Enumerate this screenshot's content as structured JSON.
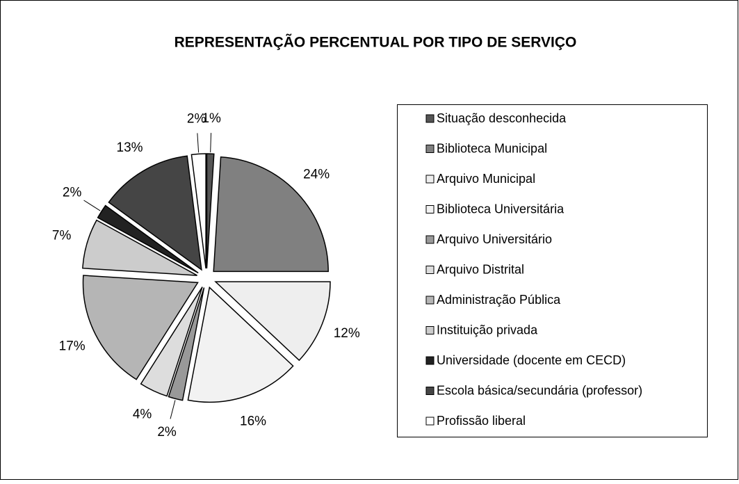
{
  "chart_data": {
    "type": "pie",
    "title": "REPRESENTAÇÃO PERCENTUAL POR TIPO DE SERVIÇO",
    "categories": [
      "Situação desconhecida",
      "Biblioteca Municipal",
      "Arquivo Municipal",
      "Biblioteca Universitária",
      "Arquivo Universitário",
      "Arquivo Distrital",
      "Administração Pública",
      "Instituição privada",
      "Universidade (docente em CECD)",
      "Escola básica/secundária (professor)",
      "Profissão liberal"
    ],
    "values": [
      1,
      24,
      12,
      16,
      2,
      4,
      17,
      7,
      2,
      13,
      2
    ],
    "value_labels": [
      "1%",
      "24%",
      "12%",
      "16%",
      "2%",
      "4%",
      "17%",
      "7%",
      "2%",
      "13%",
      "2%"
    ],
    "colors": [
      "#555555",
      "#808080",
      "#eeeeee",
      "#f2f2f2",
      "#999999",
      "#dddddd",
      "#b5b5b5",
      "#cccccc",
      "#222222",
      "#454545",
      "#ffffff"
    ],
    "legend": "right"
  }
}
